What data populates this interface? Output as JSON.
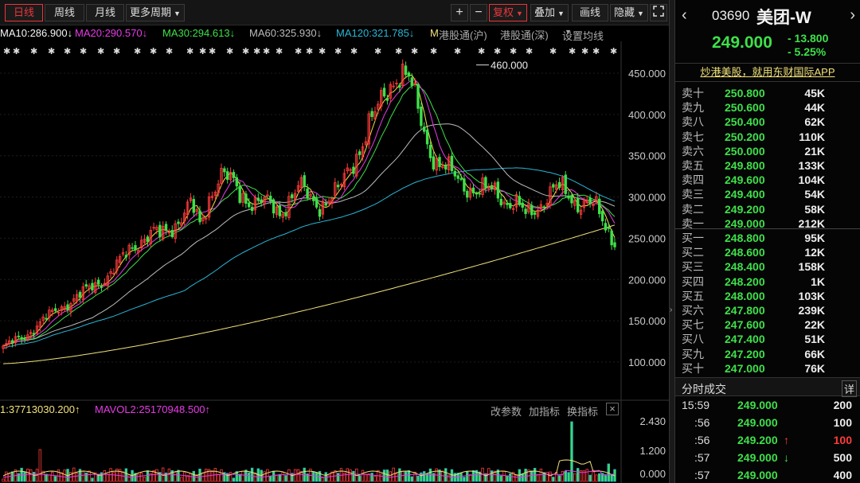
{
  "toolbar": {
    "periods": [
      "日线",
      "周线",
      "月线",
      "更多周期"
    ],
    "zoom_in": "+",
    "zoom_out": "−",
    "adjust": "复权",
    "overlay": "叠加",
    "draw": "画线",
    "hide": "隐藏"
  },
  "ma_legend": {
    "ma10": "MA10:286.900↓",
    "ma20": "MA20:290.570↓",
    "ma30": "MA30:294.613↓",
    "ma60": "MA60:325.930↓",
    "ma120": "MA120:321.785↓",
    "ma250": "M",
    "link_sh": "港股通(沪)",
    "link_sz": "港股通(深)",
    "settings": "设置均线"
  },
  "stars": "✱",
  "peak_label": "460.000",
  "price_axis": [
    "450.000",
    "400.000",
    "350.000",
    "300.000",
    "250.000",
    "200.000",
    "150.000",
    "100.000"
  ],
  "vol_axis": [
    "2.430",
    "1.200",
    "0.000"
  ],
  "vol_legend": {
    "mavol1": "1:37713030.200↑",
    "mavol2": "MAVOL2:25170948.500↑",
    "edit": "改参数",
    "add": "加指标",
    "switch": "换指标",
    "close": "×"
  },
  "quote": {
    "code": "03690",
    "name": "美团-W",
    "price": "249.000",
    "change": "- 13.800",
    "pct": "- 5.25%",
    "promo": "炒港美股，就用东财国际APP"
  },
  "order_book": [
    {
      "label": "卖十",
      "price": "250.800",
      "vol": "45K"
    },
    {
      "label": "卖九",
      "price": "250.600",
      "vol": "44K"
    },
    {
      "label": "卖八",
      "price": "250.400",
      "vol": "62K"
    },
    {
      "label": "卖七",
      "price": "250.200",
      "vol": "110K"
    },
    {
      "label": "卖六",
      "price": "250.000",
      "vol": "21K"
    },
    {
      "label": "卖五",
      "price": "249.800",
      "vol": "133K"
    },
    {
      "label": "卖四",
      "price": "249.600",
      "vol": "104K"
    },
    {
      "label": "卖三",
      "price": "249.400",
      "vol": "54K"
    },
    {
      "label": "卖二",
      "price": "249.200",
      "vol": "58K"
    },
    {
      "label": "卖一",
      "price": "249.000",
      "vol": "212K"
    },
    {
      "label": "买一",
      "price": "248.800",
      "vol": "95K"
    },
    {
      "label": "买二",
      "price": "248.600",
      "vol": "12K"
    },
    {
      "label": "买三",
      "price": "248.400",
      "vol": "158K"
    },
    {
      "label": "买四",
      "price": "248.200",
      "vol": "1K"
    },
    {
      "label": "买五",
      "price": "248.000",
      "vol": "103K"
    },
    {
      "label": "买六",
      "price": "247.800",
      "vol": "239K"
    },
    {
      "label": "买七",
      "price": "247.600",
      "vol": "22K"
    },
    {
      "label": "买八",
      "price": "247.400",
      "vol": "51K"
    },
    {
      "label": "买九",
      "price": "247.200",
      "vol": "66K"
    },
    {
      "label": "买十",
      "price": "247.000",
      "vol": "76K"
    }
  ],
  "ticks_header": {
    "title": "分时成交",
    "detail": "详"
  },
  "ticks": [
    {
      "time": "15:59",
      "price": "249.000",
      "arrow": "",
      "vol": "200",
      "color": "#eee"
    },
    {
      "time": ":56",
      "price": "249.000",
      "arrow": "",
      "vol": "100",
      "color": "#eee"
    },
    {
      "time": ":56",
      "price": "249.200",
      "arrow": "↑",
      "vol": "100",
      "color": "#ff3b3b"
    },
    {
      "time": ":57",
      "price": "249.000",
      "arrow": "↓",
      "vol": "500",
      "color": "#eee"
    },
    {
      "time": ":57",
      "price": "249.000",
      "arrow": "",
      "vol": "400",
      "color": "#eee"
    }
  ],
  "colors": {
    "up": "#ff3b3b",
    "down": "#3ee04a",
    "ma10": "#f5f5f5",
    "ma20": "#e83ae8",
    "ma30": "#3ee04a",
    "ma60": "#bbbbbb",
    "ma120": "#29b6d6",
    "ma250": "#f2e27a"
  },
  "chart_data": {
    "type": "line",
    "ylim": [
      75,
      475
    ],
    "peak": 460,
    "ma250_start": 98,
    "ma250_end": 266,
    "close_series": [
      118,
      124,
      130,
      140,
      150,
      158,
      168,
      176,
      182,
      190,
      200,
      210,
      222,
      238,
      250,
      256,
      252,
      262,
      278,
      290,
      262,
      305,
      330,
      318,
      302,
      298,
      295,
      288,
      280,
      300,
      312,
      296,
      292,
      300,
      305,
      330,
      358,
      385,
      402,
      432,
      455,
      445,
      405,
      368,
      342,
      330,
      322,
      316,
      306,
      305,
      309,
      296,
      290,
      276,
      288,
      300,
      309,
      305,
      296,
      294,
      286,
      265,
      249
    ]
  }
}
